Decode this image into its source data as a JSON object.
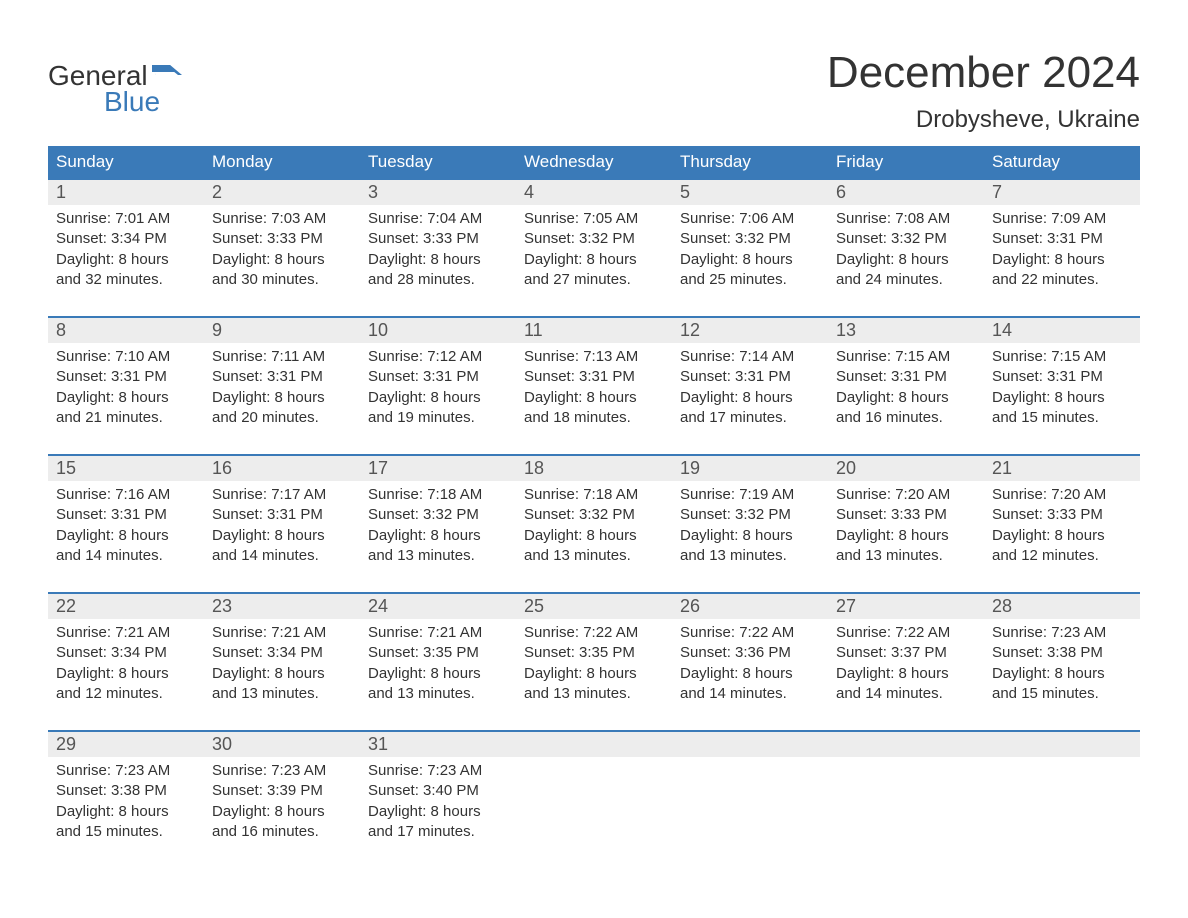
{
  "brand": {
    "line1": "General",
    "line2": "Blue",
    "flag_color": "#3a7ab8"
  },
  "title": "December 2024",
  "location": "Drobysheve, Ukraine",
  "colors": {
    "header_bg": "#3a7ab8",
    "header_text": "#ffffff",
    "daynum_bg": "#ededed",
    "text": "#333333",
    "rule": "#3a7ab8"
  },
  "fonts": {
    "title_size_pt": 33,
    "location_size_pt": 18,
    "header_size_pt": 13,
    "body_size_pt": 11
  },
  "day_headers": [
    "Sunday",
    "Monday",
    "Tuesday",
    "Wednesday",
    "Thursday",
    "Friday",
    "Saturday"
  ],
  "weeks": [
    [
      {
        "n": "1",
        "sr": "7:01 AM",
        "ss": "3:34 PM",
        "dl": "8 hours and 32 minutes."
      },
      {
        "n": "2",
        "sr": "7:03 AM",
        "ss": "3:33 PM",
        "dl": "8 hours and 30 minutes."
      },
      {
        "n": "3",
        "sr": "7:04 AM",
        "ss": "3:33 PM",
        "dl": "8 hours and 28 minutes."
      },
      {
        "n": "4",
        "sr": "7:05 AM",
        "ss": "3:32 PM",
        "dl": "8 hours and 27 minutes."
      },
      {
        "n": "5",
        "sr": "7:06 AM",
        "ss": "3:32 PM",
        "dl": "8 hours and 25 minutes."
      },
      {
        "n": "6",
        "sr": "7:08 AM",
        "ss": "3:32 PM",
        "dl": "8 hours and 24 minutes."
      },
      {
        "n": "7",
        "sr": "7:09 AM",
        "ss": "3:31 PM",
        "dl": "8 hours and 22 minutes."
      }
    ],
    [
      {
        "n": "8",
        "sr": "7:10 AM",
        "ss": "3:31 PM",
        "dl": "8 hours and 21 minutes."
      },
      {
        "n": "9",
        "sr": "7:11 AM",
        "ss": "3:31 PM",
        "dl": "8 hours and 20 minutes."
      },
      {
        "n": "10",
        "sr": "7:12 AM",
        "ss": "3:31 PM",
        "dl": "8 hours and 19 minutes."
      },
      {
        "n": "11",
        "sr": "7:13 AM",
        "ss": "3:31 PM",
        "dl": "8 hours and 18 minutes."
      },
      {
        "n": "12",
        "sr": "7:14 AM",
        "ss": "3:31 PM",
        "dl": "8 hours and 17 minutes."
      },
      {
        "n": "13",
        "sr": "7:15 AM",
        "ss": "3:31 PM",
        "dl": "8 hours and 16 minutes."
      },
      {
        "n": "14",
        "sr": "7:15 AM",
        "ss": "3:31 PM",
        "dl": "8 hours and 15 minutes."
      }
    ],
    [
      {
        "n": "15",
        "sr": "7:16 AM",
        "ss": "3:31 PM",
        "dl": "8 hours and 14 minutes."
      },
      {
        "n": "16",
        "sr": "7:17 AM",
        "ss": "3:31 PM",
        "dl": "8 hours and 14 minutes."
      },
      {
        "n": "17",
        "sr": "7:18 AM",
        "ss": "3:32 PM",
        "dl": "8 hours and 13 minutes."
      },
      {
        "n": "18",
        "sr": "7:18 AM",
        "ss": "3:32 PM",
        "dl": "8 hours and 13 minutes."
      },
      {
        "n": "19",
        "sr": "7:19 AM",
        "ss": "3:32 PM",
        "dl": "8 hours and 13 minutes."
      },
      {
        "n": "20",
        "sr": "7:20 AM",
        "ss": "3:33 PM",
        "dl": "8 hours and 13 minutes."
      },
      {
        "n": "21",
        "sr": "7:20 AM",
        "ss": "3:33 PM",
        "dl": "8 hours and 12 minutes."
      }
    ],
    [
      {
        "n": "22",
        "sr": "7:21 AM",
        "ss": "3:34 PM",
        "dl": "8 hours and 12 minutes."
      },
      {
        "n": "23",
        "sr": "7:21 AM",
        "ss": "3:34 PM",
        "dl": "8 hours and 13 minutes."
      },
      {
        "n": "24",
        "sr": "7:21 AM",
        "ss": "3:35 PM",
        "dl": "8 hours and 13 minutes."
      },
      {
        "n": "25",
        "sr": "7:22 AM",
        "ss": "3:35 PM",
        "dl": "8 hours and 13 minutes."
      },
      {
        "n": "26",
        "sr": "7:22 AM",
        "ss": "3:36 PM",
        "dl": "8 hours and 14 minutes."
      },
      {
        "n": "27",
        "sr": "7:22 AM",
        "ss": "3:37 PM",
        "dl": "8 hours and 14 minutes."
      },
      {
        "n": "28",
        "sr": "7:23 AM",
        "ss": "3:38 PM",
        "dl": "8 hours and 15 minutes."
      }
    ],
    [
      {
        "n": "29",
        "sr": "7:23 AM",
        "ss": "3:38 PM",
        "dl": "8 hours and 15 minutes."
      },
      {
        "n": "30",
        "sr": "7:23 AM",
        "ss": "3:39 PM",
        "dl": "8 hours and 16 minutes."
      },
      {
        "n": "31",
        "sr": "7:23 AM",
        "ss": "3:40 PM",
        "dl": "8 hours and 17 minutes."
      },
      null,
      null,
      null,
      null
    ]
  ],
  "labels": {
    "sunrise": "Sunrise:",
    "sunset": "Sunset:",
    "daylight": "Daylight:"
  }
}
